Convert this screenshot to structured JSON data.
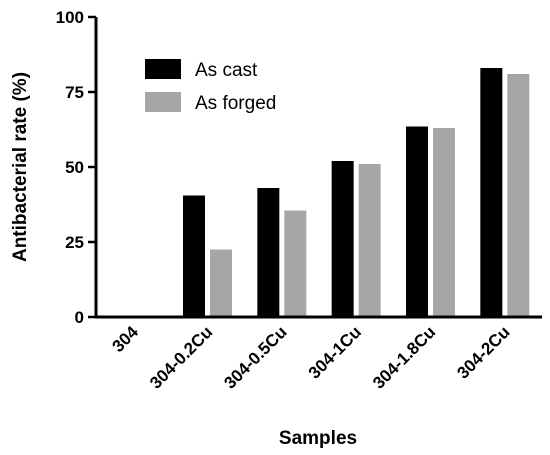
{
  "chart_data": {
    "type": "bar",
    "xlabel": "Samples",
    "ylabel": "Antibacterial rate (%)",
    "ylim": [
      0,
      100
    ],
    "yticks": [
      0,
      25,
      50,
      75,
      100
    ],
    "categories": [
      "304",
      "304-0.2Cu",
      "304-0.5Cu",
      "304-1Cu",
      "304-1.8Cu",
      "304-2Cu"
    ],
    "series": [
      {
        "name": "As cast",
        "color": "#000000",
        "values": [
          0,
          40.5,
          43,
          52,
          63.5,
          83
        ]
      },
      {
        "name": "As forged",
        "color": "#a6a6a6",
        "values": [
          0,
          22.5,
          35.5,
          51,
          63,
          81
        ]
      }
    ],
    "legend_position": "top-left",
    "grid": false
  }
}
